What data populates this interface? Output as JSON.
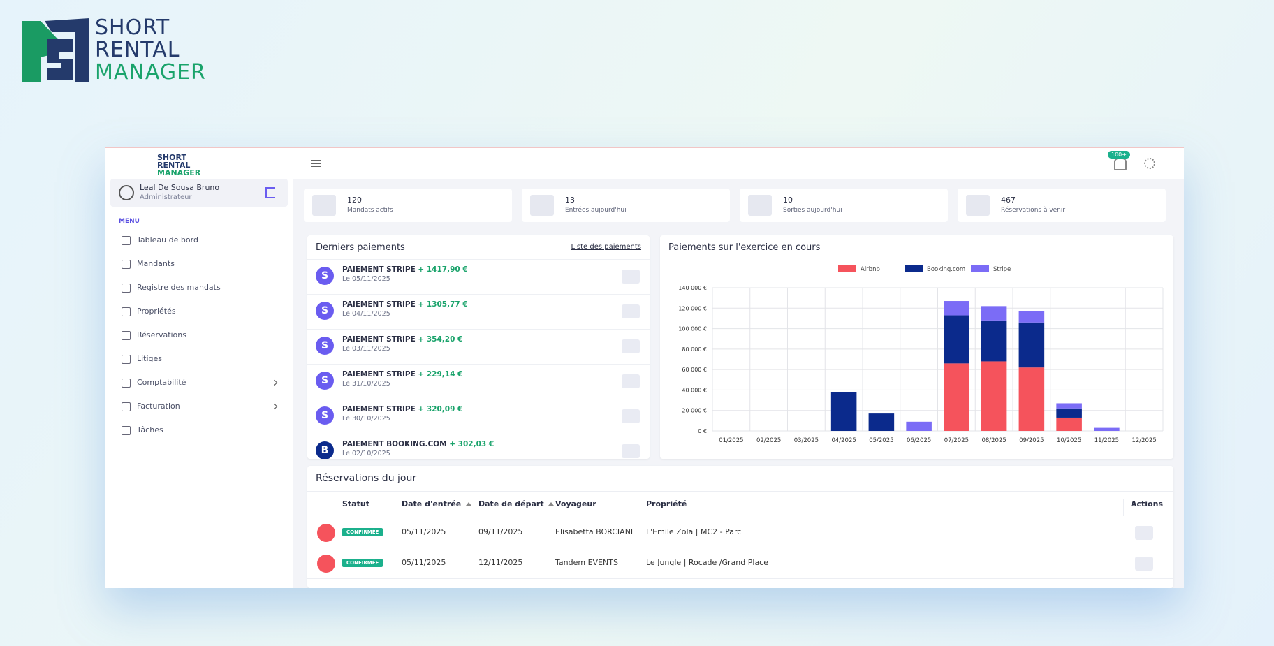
{
  "brand": {
    "line1": "SHORT",
    "line2": "RENTAL",
    "line3": "MANAGER"
  },
  "sidebar": {
    "user_name": "Leal De Sousa Bruno",
    "user_role": "Administrateur",
    "menu_label": "MENU",
    "menu": [
      "Tableau de bord",
      "Mandants",
      "Registre des mandats",
      "Propriétés",
      "Réservations",
      "Litiges",
      "Comptabilité",
      "Facturation",
      "Tâches"
    ]
  },
  "topbar": {
    "badge": "100+"
  },
  "stats": [
    {
      "value": 120,
      "label": "Mandats actifs"
    },
    {
      "value": 13,
      "label": "Entrées aujourd'hui"
    },
    {
      "value": 10,
      "label": "Sorties aujourd'hui"
    },
    {
      "value": 467,
      "label": "Réservations à venir"
    }
  ],
  "payments": {
    "title": "Derniers paiements",
    "link": "Liste des paiements",
    "items": [
      {
        "icon": "S",
        "name": "PAIEMENT STRIPE",
        "amount": "+ 1417,90 €",
        "date": "Le 05/11/2025"
      },
      {
        "icon": "S",
        "name": "PAIEMENT STRIPE",
        "amount": "+ 1305,77 €",
        "date": "Le 04/11/2025"
      },
      {
        "icon": "S",
        "name": "PAIEMENT STRIPE",
        "amount": "+ 354,20 €",
        "date": "Le 03/11/2025"
      },
      {
        "icon": "S",
        "name": "PAIEMENT STRIPE",
        "amount": "+ 229,14 €",
        "date": "Le 31/10/2025"
      },
      {
        "icon": "S",
        "name": "PAIEMENT STRIPE",
        "amount": "+ 320,09 €",
        "date": "Le 30/10/2025"
      },
      {
        "icon": "B",
        "name": "PAIEMENT BOOKING.COM",
        "amount": "+ 302,03 €",
        "date": "Le 02/10/2025"
      }
    ]
  },
  "chart_data": {
    "type": "stacked-bar",
    "title": "Paiements sur l'exercice en cours",
    "categories": [
      "01/2025",
      "02/2025",
      "03/2025",
      "04/2025",
      "05/2025",
      "06/2025",
      "07/2025",
      "08/2025",
      "09/2025",
      "10/2025",
      "11/2025",
      "12/2025"
    ],
    "series": [
      {
        "name": "Airbnb",
        "color": "#f5535c",
        "values": [
          0,
          0,
          0,
          0,
          0,
          0,
          66000,
          68000,
          62000,
          13000,
          0,
          0
        ]
      },
      {
        "name": "Booking.com",
        "color": "#0b2a8c",
        "values": [
          0,
          0,
          0,
          38000,
          17000,
          0,
          47000,
          40000,
          44000,
          9000,
          0,
          0
        ]
      },
      {
        "name": "Stripe",
        "color": "#7b6cf6",
        "values": [
          0,
          0,
          0,
          0,
          0,
          9000,
          14000,
          14000,
          11000,
          5000,
          3000,
          0
        ]
      }
    ],
    "ylim": [
      0,
      140000
    ],
    "yticks": [
      {
        "value": 0,
        "label": "0 €"
      },
      {
        "value": 20000,
        "label": "20 000 €"
      },
      {
        "value": 40000,
        "label": "40 000 €"
      },
      {
        "value": 60000,
        "label": "60 000 €"
      },
      {
        "value": 80000,
        "label": "80 000 €"
      },
      {
        "value": 100000,
        "label": "100 000 €"
      },
      {
        "value": 120000,
        "label": "120 000 €"
      },
      {
        "value": 140000,
        "label": "140 000 €"
      }
    ],
    "grid": true,
    "legend": "top"
  },
  "reservations": {
    "title": "Réservations du jour",
    "columns": [
      "Statut",
      "Date d'entrée",
      "Date de départ",
      "Voyageur",
      "Propriété",
      "Actions"
    ],
    "rows": [
      [
        "CONFIRMÉE",
        "05/11/2025",
        "09/11/2025",
        "Elisabetta BORCIANI",
        "L'Emile Zola | MC2 - Parc"
      ],
      [
        "CONFIRMÉE",
        "05/11/2025",
        "12/11/2025",
        "Tandem EVENTS",
        "Le Jungle | Rocade /Grand Place"
      ]
    ]
  }
}
